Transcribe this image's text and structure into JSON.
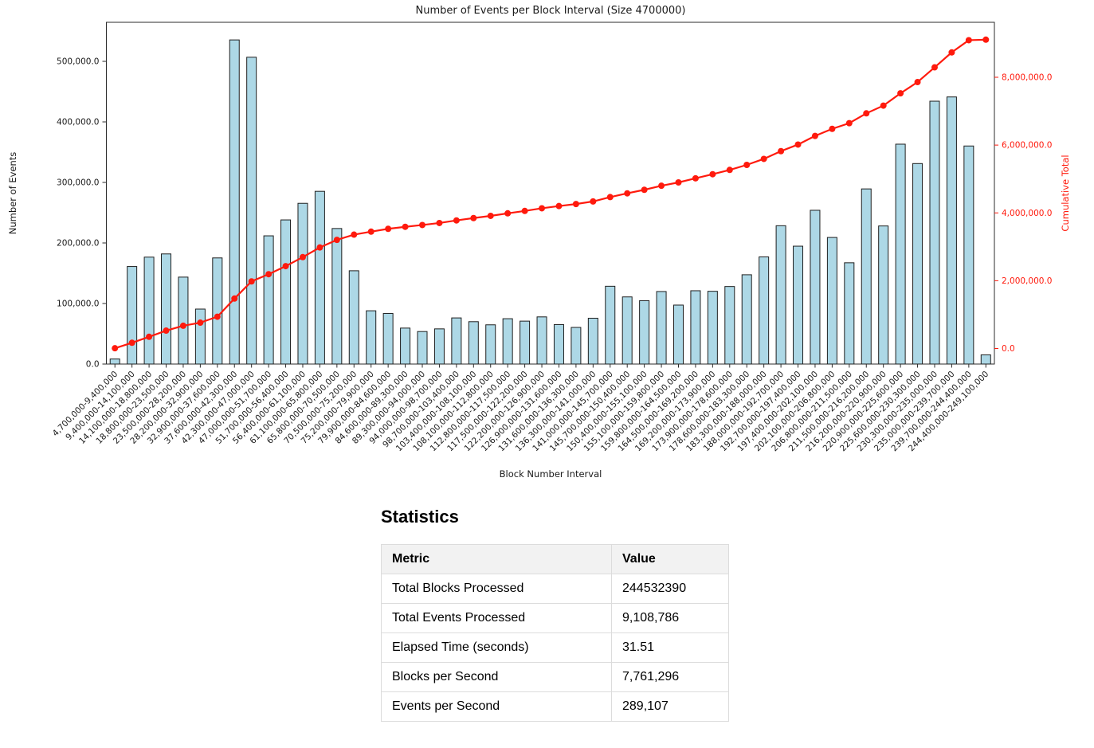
{
  "chart_data": {
    "type": "bar",
    "title": "Number of Events per Block Interval (Size 4700000)",
    "xlabel": "Block Number Interval",
    "ylabel_left": "Number of Events",
    "ylabel_right": "Cumulative Total",
    "legend": "none",
    "grid": false,
    "categories": [
      "4,700,000-9,400,000",
      "9,400,000-14,100,000",
      "14,100,000-18,800,000",
      "18,800,000-23,500,000",
      "23,500,000-28,200,000",
      "28,200,000-32,900,000",
      "32,900,000-37,600,000",
      "37,600,000-42,300,000",
      "42,300,000-47,000,000",
      "47,000,000-51,700,000",
      "51,700,000-56,400,000",
      "56,400,000-61,100,000",
      "61,100,000-65,800,000",
      "65,800,000-70,500,000",
      "70,500,000-75,200,000",
      "75,200,000-79,900,000",
      "79,900,000-84,600,000",
      "84,600,000-89,300,000",
      "89,300,000-94,000,000",
      "94,000,000-98,700,000",
      "98,700,000-103,400,000",
      "103,400,000-108,100,000",
      "108,100,000-112,800,000",
      "112,800,000-117,500,000",
      "117,500,000-122,200,000",
      "122,200,000-126,900,000",
      "126,900,000-131,600,000",
      "131,600,000-136,300,000",
      "136,300,000-141,000,000",
      "141,000,000-145,700,000",
      "145,700,000-150,400,000",
      "150,400,000-155,100,000",
      "155,100,000-159,800,000",
      "159,800,000-164,500,000",
      "164,500,000-169,200,000",
      "169,200,000-173,900,000",
      "173,900,000-178,600,000",
      "178,600,000-183,300,000",
      "183,300,000-188,000,000",
      "188,000,000-192,700,000",
      "192,700,000-197,400,000",
      "197,400,000-202,100,000",
      "202,100,000-206,800,000",
      "206,800,000-211,500,000",
      "211,500,000-216,200,000",
      "216,200,000-220,900,000",
      "220,900,000-225,600,000",
      "225,600,000-230,300,000",
      "230,300,000-235,000,000",
      "235,000,000-239,700,000",
      "239,700,000-244,400,000",
      "244,400,000-249,100,000"
    ],
    "series": [
      {
        "name": "Number of Events",
        "type": "bar",
        "axis": "left",
        "values": [
          8300,
          161100,
          176600,
          181900,
          143600,
          90800,
          175300,
          535400,
          506800,
          211800,
          238100,
          265500,
          285300,
          223900,
          154100,
          88000,
          83600,
          59400,
          53700,
          58100,
          76200,
          70000,
          64800,
          74900,
          70900,
          77900,
          65200,
          60500,
          75700,
          128500,
          110900,
          104700,
          119800,
          97400,
          121100,
          120200,
          128100,
          147500,
          177000,
          228500,
          194700,
          254000,
          209100,
          167300,
          289300,
          228100,
          363200,
          331200,
          434200,
          441200,
          360200,
          15186
        ]
      },
      {
        "name": "Cumulative Total",
        "type": "line",
        "axis": "right",
        "derived": "cumulative_sum_of_bar_values",
        "final_value": 9108786
      }
    ],
    "y_left_ticks": [
      0,
      100000,
      200000,
      300000,
      400000,
      500000
    ],
    "y_right_ticks": [
      0,
      2000000,
      4000000,
      6000000,
      8000000
    ],
    "ylim_left": [
      0,
      564500
    ],
    "ylim_right": [
      -458000,
      9621000
    ],
    "colors": {
      "bar_fill": "#add8e6",
      "bar_edge": "#1f1f1f",
      "line": "#ff1a0d",
      "left_axis_text": "#1a1a1a",
      "right_axis_text": "#ff1a0d",
      "spine": "#2b2b2b",
      "background": "#ffffff"
    }
  },
  "statistics": {
    "heading": "Statistics",
    "table": {
      "columns": [
        "Metric",
        "Value"
      ],
      "rows": [
        {
          "metric": "Total Blocks Processed",
          "value": "244532390"
        },
        {
          "metric": "Total Events Processed",
          "value": "9,108,786"
        },
        {
          "metric": "Elapsed Time (seconds)",
          "value": "31.51"
        },
        {
          "metric": "Blocks per Second",
          "value": "7,761,296"
        },
        {
          "metric": "Events per Second",
          "value": "289,107"
        }
      ]
    }
  }
}
